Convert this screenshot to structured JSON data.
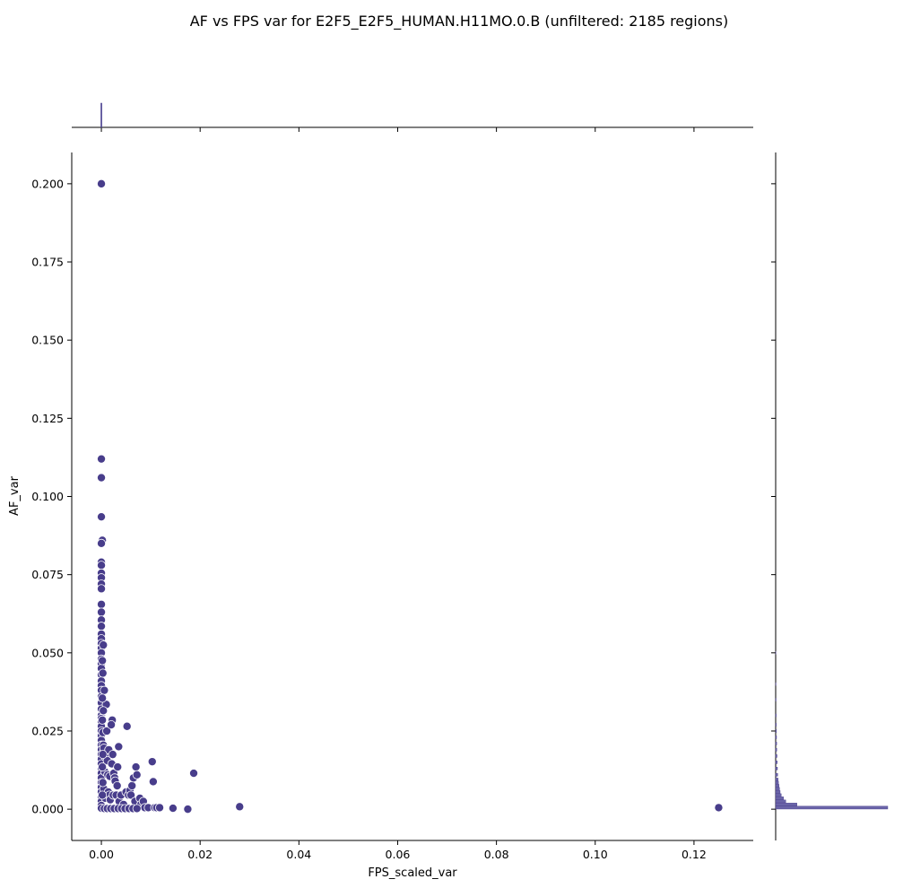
{
  "chart_data": {
    "type": "scatter",
    "title": "AF vs FPS var for E2F5_E2F5_HUMAN.H11MO.0.B (unfiltered: 2185 regions)",
    "xlabel": "FPS_scaled_var",
    "ylabel": "AF_var",
    "xlim": [
      -0.006,
      0.132
    ],
    "ylim": [
      -0.01,
      0.21
    ],
    "xticks": [
      "0.00",
      "0.02",
      "0.04",
      "0.06",
      "0.08",
      "0.10",
      "0.12"
    ],
    "xtick_values": [
      0,
      0.02,
      0.04,
      0.06,
      0.08,
      0.1,
      0.12
    ],
    "yticks": [
      "0.000",
      "0.025",
      "0.050",
      "0.075",
      "0.100",
      "0.125",
      "0.150",
      "0.175",
      "0.200"
    ],
    "ytick_values": [
      0,
      0.025,
      0.05,
      0.075,
      0.1,
      0.125,
      0.15,
      0.175,
      0.2
    ],
    "marker_color": "#483d8b",
    "marker_edge_color": "#ffffff",
    "grid": false,
    "marginal_x": {
      "type": "histogram",
      "note_peak_at_x": 0
    },
    "marginal_y": {
      "type": "histogram",
      "bins": [
        {
          "y": 0.0005,
          "count": 1.0
        },
        {
          "y": 0.0015,
          "count": 0.19
        },
        {
          "y": 0.0025,
          "count": 0.09
        },
        {
          "y": 0.0035,
          "count": 0.07
        },
        {
          "y": 0.0045,
          "count": 0.05
        },
        {
          "y": 0.0055,
          "count": 0.04
        },
        {
          "y": 0.0065,
          "count": 0.035
        },
        {
          "y": 0.0075,
          "count": 0.03
        },
        {
          "y": 0.0085,
          "count": 0.025
        },
        {
          "y": 0.0095,
          "count": 0.022
        },
        {
          "y": 0.011,
          "count": 0.018
        },
        {
          "y": 0.013,
          "count": 0.016
        },
        {
          "y": 0.015,
          "count": 0.014
        },
        {
          "y": 0.017,
          "count": 0.012
        },
        {
          "y": 0.019,
          "count": 0.01
        },
        {
          "y": 0.021,
          "count": 0.009
        },
        {
          "y": 0.023,
          "count": 0.008
        },
        {
          "y": 0.025,
          "count": 0.007
        },
        {
          "y": 0.027,
          "count": 0.006
        },
        {
          "y": 0.03,
          "count": 0.005
        },
        {
          "y": 0.035,
          "count": 0.004
        },
        {
          "y": 0.04,
          "count": 0.003
        },
        {
          "y": 0.05,
          "count": 0.002
        }
      ]
    },
    "points": [
      [
        0.0,
        0.2
      ],
      [
        0.0,
        0.112
      ],
      [
        0.0,
        0.106
      ],
      [
        0.0,
        0.0935
      ],
      [
        0.0002,
        0.086
      ],
      [
        0.0,
        0.085
      ],
      [
        0.0,
        0.079
      ],
      [
        0.0,
        0.078
      ],
      [
        0.0,
        0.0755
      ],
      [
        0.0,
        0.074
      ],
      [
        0.0,
        0.072
      ],
      [
        0.0,
        0.0705
      ],
      [
        0.0,
        0.0655
      ],
      [
        0.0,
        0.063
      ],
      [
        0.0,
        0.0605
      ],
      [
        0.0,
        0.0585
      ],
      [
        0.0,
        0.056
      ],
      [
        0.0,
        0.0545
      ],
      [
        0.0,
        0.053
      ],
      [
        0.0,
        0.0515
      ],
      [
        0.0,
        0.05
      ],
      [
        0.0,
        0.048
      ],
      [
        0.0,
        0.0465
      ],
      [
        0.0,
        0.045
      ],
      [
        0.0,
        0.043
      ],
      [
        0.0,
        0.041
      ],
      [
        0.0,
        0.0395
      ],
      [
        0.0,
        0.038
      ],
      [
        0.0,
        0.036
      ],
      [
        0.0,
        0.034
      ],
      [
        0.0,
        0.032
      ],
      [
        0.0,
        0.03
      ],
      [
        0.0,
        0.029
      ],
      [
        0.0,
        0.028
      ],
      [
        0.0,
        0.0265
      ],
      [
        0.0,
        0.025
      ],
      [
        0.0,
        0.0235
      ],
      [
        0.0,
        0.022
      ],
      [
        0.0,
        0.0205
      ],
      [
        0.0,
        0.019
      ],
      [
        0.0,
        0.0175
      ],
      [
        0.0,
        0.016
      ],
      [
        0.0,
        0.0145
      ],
      [
        0.0,
        0.013
      ],
      [
        0.0,
        0.0115
      ],
      [
        0.0,
        0.01
      ],
      [
        0.0,
        0.0085
      ],
      [
        0.0,
        0.007
      ],
      [
        0.0,
        0.0055
      ],
      [
        0.0,
        0.004
      ],
      [
        0.0,
        0.0025
      ],
      [
        0.0,
        0.0012
      ],
      [
        0.0,
        0.0003
      ],
      [
        0.0004,
        0.0525
      ],
      [
        0.0003,
        0.0245
      ],
      [
        0.0004,
        0.0205
      ],
      [
        0.0006,
        0.038
      ],
      [
        0.0005,
        0.0195
      ],
      [
        0.0007,
        0.012
      ],
      [
        0.0005,
        0.0065
      ],
      [
        0.0008,
        0.0035
      ],
      [
        0.001,
        0.0335
      ],
      [
        0.0011,
        0.025
      ],
      [
        0.0009,
        0.0165
      ],
      [
        0.0012,
        0.0155
      ],
      [
        0.0015,
        0.019
      ],
      [
        0.0013,
        0.011
      ],
      [
        0.0017,
        0.0105
      ],
      [
        0.0014,
        0.0055
      ],
      [
        0.0016,
        0.0045
      ],
      [
        0.0018,
        0.003
      ],
      [
        0.0022,
        0.0285
      ],
      [
        0.002,
        0.027
      ],
      [
        0.0023,
        0.0175
      ],
      [
        0.0021,
        0.0145
      ],
      [
        0.0025,
        0.0115
      ],
      [
        0.0027,
        0.01
      ],
      [
        0.0024,
        0.0045
      ],
      [
        0.0028,
        0.009
      ],
      [
        0.003,
        0.0045
      ],
      [
        0.0033,
        0.0135
      ],
      [
        0.0035,
        0.02
      ],
      [
        0.0032,
        0.0075
      ],
      [
        0.0036,
        0.0025
      ],
      [
        0.004,
        0.0045
      ],
      [
        0.0045,
        0.0015
      ],
      [
        0.005,
        0.0055
      ],
      [
        0.0052,
        0.0265
      ],
      [
        0.0055,
        0.0045
      ],
      [
        0.0058,
        0.006
      ],
      [
        0.006,
        0.0045
      ],
      [
        0.0062,
        0.0075
      ],
      [
        0.0065,
        0.01
      ],
      [
        0.0068,
        0.0025
      ],
      [
        0.007,
        0.0135
      ],
      [
        0.0072,
        0.011
      ],
      [
        0.0078,
        0.0035
      ],
      [
        0.008,
        0.0015
      ],
      [
        0.0085,
        0.0025
      ],
      [
        0.0088,
        0.0005
      ],
      [
        0.0095,
        0.0005
      ],
      [
        0.0103,
        0.0152
      ],
      [
        0.0105,
        0.0088
      ],
      [
        0.0108,
        0.0005
      ],
      [
        0.0112,
        0.0005
      ],
      [
        0.0118,
        0.0005
      ],
      [
        0.0145,
        0.0003
      ],
      [
        0.0175,
        0.0
      ],
      [
        0.0187,
        0.0115
      ],
      [
        0.028,
        0.0008
      ],
      [
        0.125,
        0.0005
      ],
      [
        0.0006,
        0.0002
      ],
      [
        0.0012,
        0.0002
      ],
      [
        0.0019,
        0.0002
      ],
      [
        0.0026,
        0.0002
      ],
      [
        0.0034,
        0.0002
      ],
      [
        0.0041,
        0.0002
      ],
      [
        0.0048,
        0.0002
      ],
      [
        0.0056,
        0.0002
      ],
      [
        0.0064,
        0.0002
      ],
      [
        0.0072,
        0.0002
      ],
      [
        0.0002,
        0.0045
      ],
      [
        0.0003,
        0.0085
      ],
      [
        0.0002,
        0.0135
      ],
      [
        0.0003,
        0.0175
      ],
      [
        0.0002,
        0.0285
      ],
      [
        0.0004,
        0.0315
      ],
      [
        0.0002,
        0.0355
      ],
      [
        0.0003,
        0.0435
      ],
      [
        0.0002,
        0.0475
      ]
    ]
  }
}
